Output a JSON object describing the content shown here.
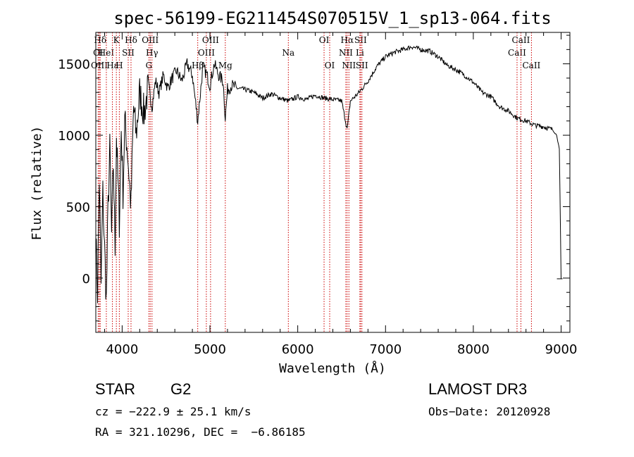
{
  "chart_data": {
    "type": "line",
    "title": "spec-56199-EG211454S070515V_1_sp13-064.fits",
    "xlabel": "Wavelength (Å)",
    "ylabel": "Flux (relative)",
    "xlim": [
      3700,
      9100
    ],
    "ylim": [
      -380,
      1720
    ],
    "x_ticks": [
      4000,
      5000,
      6000,
      7000,
      8000,
      9000
    ],
    "x_tick_labels": [
      "4000",
      "5000",
      "6000",
      "7000",
      "8000",
      "9000"
    ],
    "y_ticks": [
      0,
      500,
      1000,
      1500
    ],
    "y_tick_labels": [
      "0",
      "500",
      "1000",
      "1500"
    ],
    "line_color": "#000000",
    "marker_color": "#cc0000",
    "series": [
      {
        "name": "flux",
        "x": [
          3700,
          3720,
          3740,
          3760,
          3780,
          3800,
          3820,
          3840,
          3860,
          3880,
          3900,
          3920,
          3935,
          3950,
          3968,
          3990,
          4010,
          4030,
          4060,
          4101,
          4130,
          4160,
          4200,
          4250,
          4300,
          4340,
          4380,
          4420,
          4470,
          4520,
          4570,
          4620,
          4680,
          4740,
          4800,
          4861,
          4920,
          4960,
          5000,
          5050,
          5100,
          5150,
          5175,
          5200,
          5250,
          5300,
          5400,
          5500,
          5600,
          5700,
          5800,
          5893,
          6000,
          6100,
          6200,
          6300,
          6400,
          6500,
          6563,
          6600,
          6650,
          6700,
          6800,
          6900,
          7000,
          7100,
          7200,
          7300,
          7400,
          7500,
          7600,
          7700,
          7800,
          7900,
          8000,
          8100,
          8200,
          8300,
          8400,
          8500,
          8600,
          8700,
          8800,
          8900,
          8950,
          8980,
          9000
        ],
        "y": [
          300,
          -100,
          700,
          -50,
          600,
          200,
          -150,
          500,
          900,
          300,
          800,
          200,
          1000,
          700,
          400,
          1050,
          600,
          1100,
          900,
          500,
          1200,
          1000,
          1300,
          1150,
          1350,
          1200,
          1380,
          1300,
          1420,
          1330,
          1400,
          1450,
          1380,
          1500,
          1420,
          1100,
          1480,
          1430,
          1350,
          1500,
          1420,
          1380,
          1120,
          1320,
          1350,
          1330,
          1320,
          1300,
          1260,
          1290,
          1260,
          1240,
          1270,
          1250,
          1280,
          1260,
          1250,
          1240,
          1040,
          1240,
          1270,
          1300,
          1380,
          1480,
          1550,
          1580,
          1600,
          1620,
          1600,
          1590,
          1550,
          1490,
          1460,
          1420,
          1370,
          1300,
          1270,
          1200,
          1170,
          1120,
          1100,
          1070,
          1060,
          1040,
          1000,
          900,
          -5
        ]
      }
    ],
    "lines": [
      {
        "label": "OI",
        "x": 3727,
        "row": 1
      },
      {
        "label": "OIII",
        "x": 3740,
        "row": 2
      },
      {
        "label": "Hδ",
        "x": 3750,
        "row": 0
      },
      {
        "label": "K",
        "x": 3934,
        "row": 0
      },
      {
        "label": "HeI",
        "x": 3820,
        "row": 1
      },
      {
        "label": "Hε",
        "x": 3889,
        "row": 2
      },
      {
        "label": "SII",
        "x": 4069,
        "row": 1
      },
      {
        "label": "H",
        "x": 3968,
        "row": 2
      },
      {
        "label": "Hδ",
        "x": 4101,
        "row": 0
      },
      {
        "label": "OIII",
        "x": 4320,
        "row": 0
      },
      {
        "label": "Hγ",
        "x": 4340,
        "row": 1
      },
      {
        "label": "G",
        "x": 4305,
        "row": 2
      },
      {
        "label": "Hβ",
        "x": 4861,
        "row": 2
      },
      {
        "label": "OIII",
        "x": 4959,
        "row": 1
      },
      {
        "label": "OIII",
        "x": 5007,
        "row": 0
      },
      {
        "label": "Mg",
        "x": 5175,
        "row": 2
      },
      {
        "label": "Na",
        "x": 5893,
        "row": 1
      },
      {
        "label": "OI",
        "x": 6300,
        "row": 0
      },
      {
        "label": "OI",
        "x": 6364,
        "row": 2
      },
      {
        "label": "NII",
        "x": 6548,
        "row": 1
      },
      {
        "label": "Hα",
        "x": 6563,
        "row": 0
      },
      {
        "label": "NII",
        "x": 6583,
        "row": 2
      },
      {
        "label": "SII",
        "x": 6716,
        "row": 0
      },
      {
        "label": "Li",
        "x": 6708,
        "row": 1
      },
      {
        "label": "SII",
        "x": 6731,
        "row": 2
      },
      {
        "label": "CaII",
        "x": 8498,
        "row": 1
      },
      {
        "label": "CaII",
        "x": 8542,
        "row": 0
      },
      {
        "label": "CaII",
        "x": 8662,
        "row": 2
      }
    ]
  },
  "info": {
    "object_type": "STAR",
    "subclass": "G2",
    "survey": "LAMOST DR3",
    "cz": "cz = −222.9 ± 25.1 km/s",
    "obs_date": "Obs−Date: 20120928",
    "coords": "RA = 321.10296, DEC =  −6.86185"
  }
}
